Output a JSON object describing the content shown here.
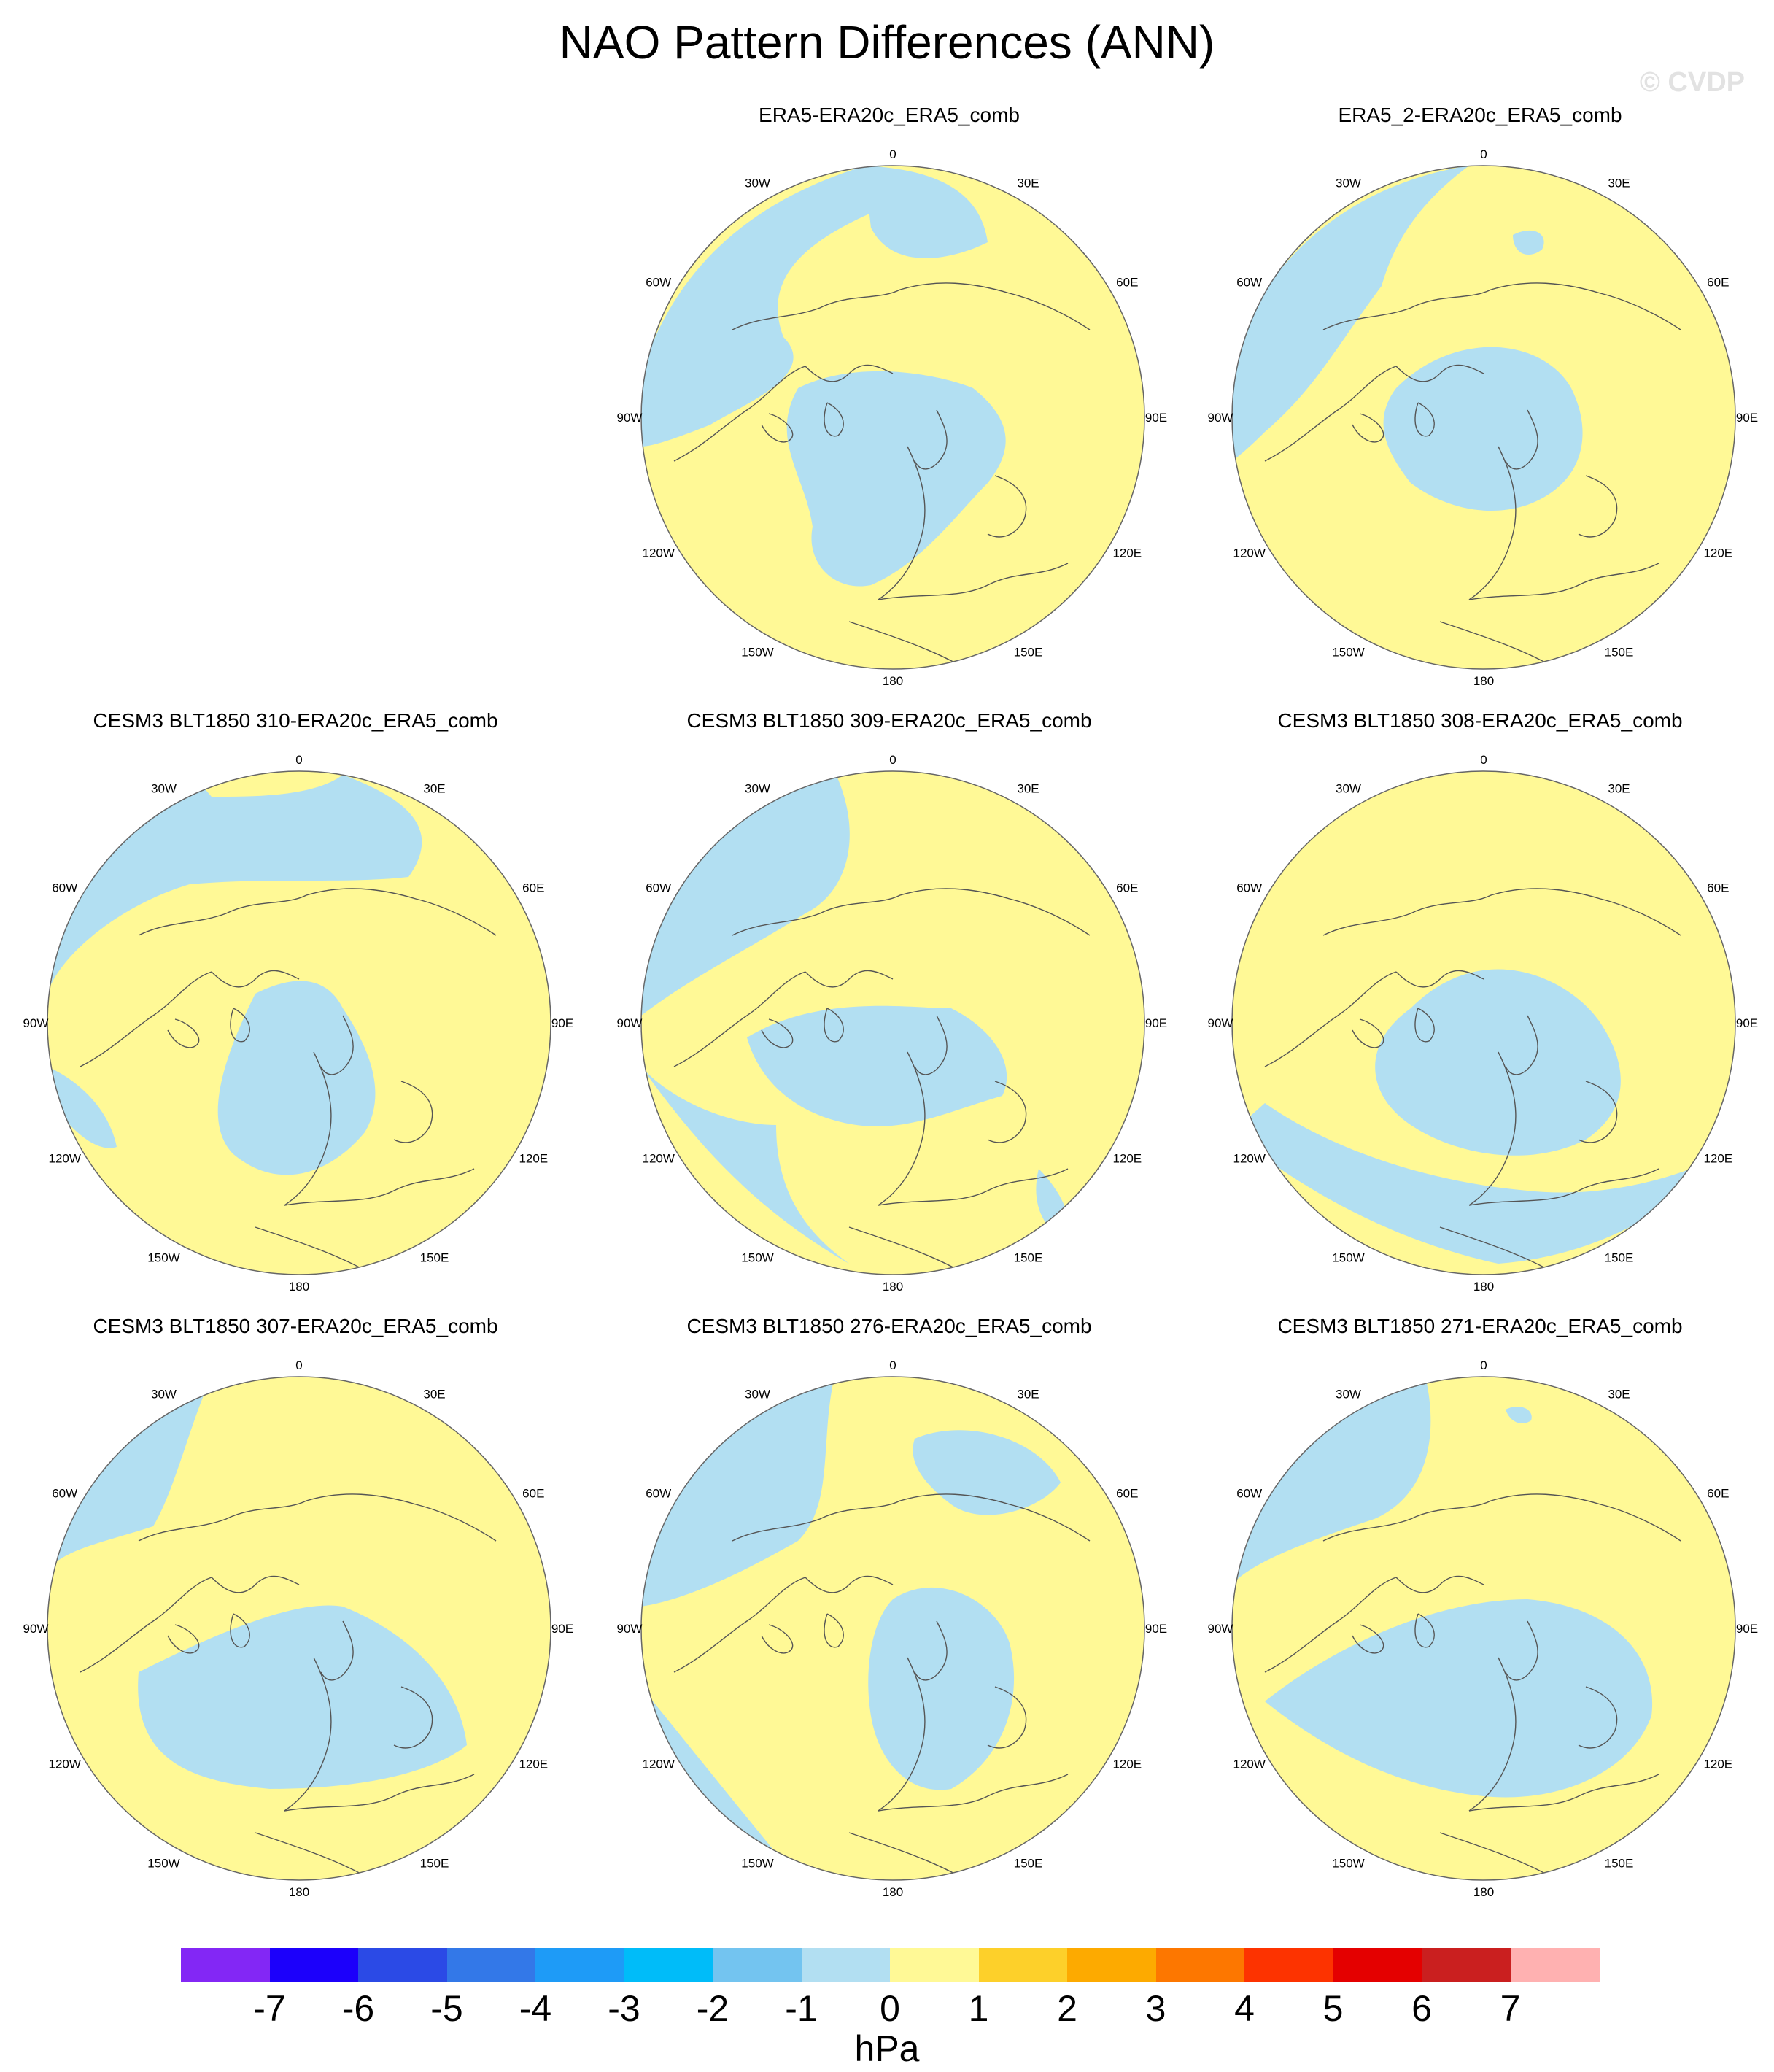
{
  "title": "NAO Pattern Differences (ANN)",
  "watermark": "© CVDP",
  "colors": {
    "negative_fill": "#b2dff2",
    "positive_fill": "#fff996",
    "strong_negative_fill": "#73c4f0",
    "coastline": "#555555",
    "outline": "#666666"
  },
  "longitude_labels": [
    "180",
    "150E",
    "120E",
    "90E",
    "60E",
    "30E",
    "0",
    "30W",
    "60W",
    "90W",
    "120W",
    "150W"
  ],
  "panels": [
    {
      "id": "p1",
      "title": "ERA5-ERA20c_ERA5_comb",
      "pattern": "A"
    },
    {
      "id": "p2",
      "title": "ERA5_2-ERA20c_ERA5_comb",
      "pattern": "B"
    },
    {
      "id": "p3",
      "title": "CESM3 BLT1850 310-ERA20c_ERA5_comb",
      "pattern": "C"
    },
    {
      "id": "p4",
      "title": "CESM3 BLT1850 309-ERA20c_ERA5_comb",
      "pattern": "D"
    },
    {
      "id": "p5",
      "title": "CESM3 BLT1850 308-ERA20c_ERA5_comb",
      "pattern": "E"
    },
    {
      "id": "p6",
      "title": "CESM3 BLT1850 307-ERA20c_ERA5_comb",
      "pattern": "F"
    },
    {
      "id": "p7",
      "title": "CESM3 BLT1850 276-ERA20c_ERA5_comb",
      "pattern": "G"
    },
    {
      "id": "p8",
      "title": "CESM3 BLT1850 271-ERA20c_ERA5_comb",
      "pattern": "H"
    }
  ],
  "colorbar": {
    "colors": [
      "#8327f5",
      "#1c00fb",
      "#2b4ae6",
      "#3378e8",
      "#1e9bf7",
      "#00bcf9",
      "#73c4f0",
      "#b2dff2",
      "#fff996",
      "#fdd02a",
      "#fdaa00",
      "#fd7700",
      "#fd3300",
      "#e40000",
      "#ca1f1f",
      "#ffb1b1"
    ],
    "labels": [
      "-7",
      "-6",
      "-5",
      "-4",
      "-3",
      "-2",
      "-1",
      "0",
      "1",
      "2",
      "3",
      "4",
      "5",
      "6",
      "7"
    ],
    "unit": "hPa"
  }
}
